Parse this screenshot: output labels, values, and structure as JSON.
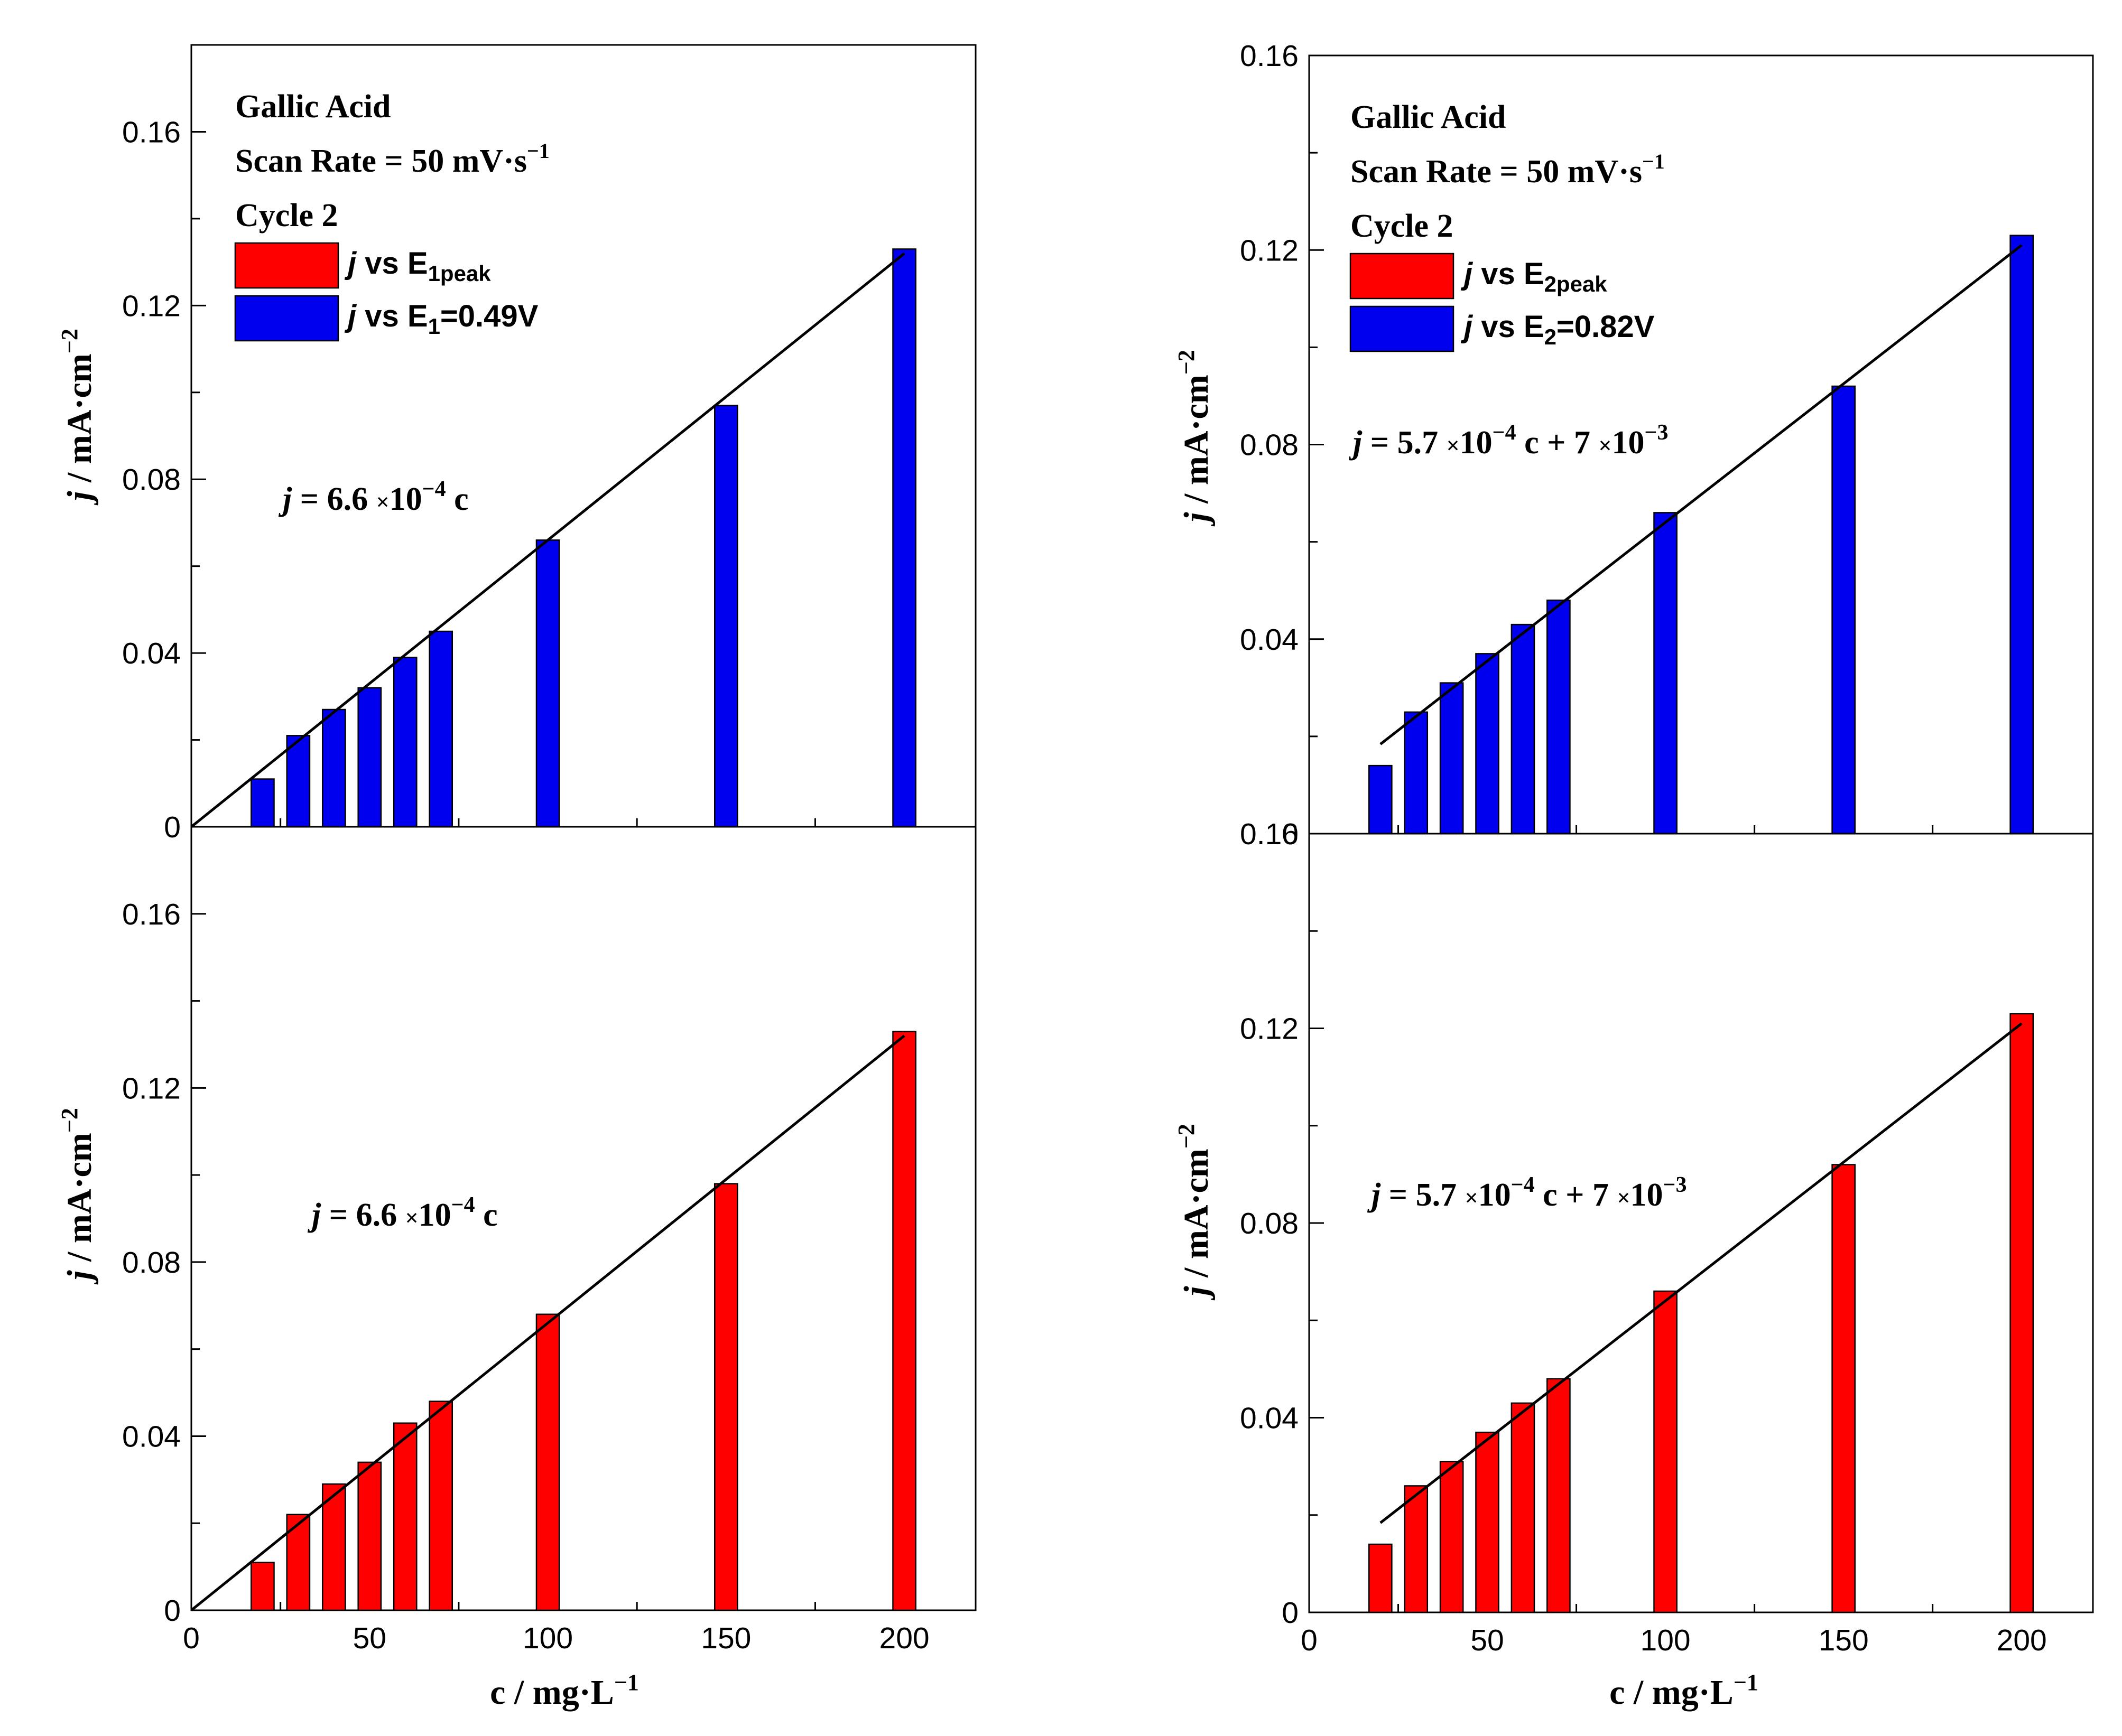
{
  "colors": {
    "blue": "#0000ee",
    "red": "#ff0000",
    "axis": "#000000"
  },
  "header": {
    "title": "Gallic Acid",
    "scan_rate_prefix": "Scan Rate = 50 mV·s",
    "scan_rate_exp": "−1",
    "cycle": "Cycle 2"
  },
  "axes": {
    "ylabel_j": "j",
    "ylabel_rest": " / mA·cm",
    "ylabel_exp": "−2",
    "xlabel_prefix": "c / mg·L",
    "xlabel_exp": "−1"
  },
  "legends": {
    "left": {
      "red": {
        "j": "j",
        "vs": " vs E",
        "sub": "1peak",
        "tail": ""
      },
      "blue": {
        "j": "j",
        "vs": " vs E",
        "sub": "1",
        "tail": "=0.49V"
      }
    },
    "right": {
      "red": {
        "j": "j",
        "vs": " vs E",
        "sub": "2peak",
        "tail": ""
      },
      "blue": {
        "j": "j",
        "vs": " vs E",
        "sub": "2",
        "tail": "=0.82V"
      }
    }
  },
  "equations": {
    "left": {
      "j": "j",
      "a": " = 6.6 ",
      "times": "×",
      "b": "10",
      "exp": "−4",
      "c": " c",
      "d": "",
      "exp2": ""
    },
    "right": {
      "j": "j",
      "a": " = 5.7 ",
      "times": "×",
      "b": "10",
      "exp": "−4",
      "c": " c + 7 ",
      "d": "10",
      "exp2": "−3"
    }
  },
  "chart_data": [
    {
      "type": "bar",
      "panel": "top-left",
      "series": [
        {
          "name": "j vs E1=0.49V",
          "color": "blue",
          "x": [
            20,
            30,
            40,
            50,
            60,
            70,
            100,
            150,
            200
          ],
          "values": [
            0.011,
            0.021,
            0.027,
            0.032,
            0.039,
            0.045,
            0.066,
            0.097,
            0.133
          ]
        }
      ],
      "fit": {
        "slope": 0.00066,
        "intercept": 0,
        "x_range": [
          0,
          200
        ]
      },
      "xlim": [
        0,
        220
      ],
      "ylim": [
        0,
        0.18
      ],
      "xticks": [
        "0",
        "50",
        "100",
        "150",
        "200"
      ],
      "yticks": [
        "0",
        "0.04",
        "0.08",
        "0.12",
        "0.16"
      ]
    },
    {
      "type": "bar",
      "panel": "bottom-left",
      "series": [
        {
          "name": "j vs E1peak",
          "color": "red",
          "x": [
            20,
            30,
            40,
            50,
            60,
            70,
            100,
            150,
            200
          ],
          "values": [
            0.011,
            0.022,
            0.029,
            0.034,
            0.043,
            0.048,
            0.068,
            0.098,
            0.133
          ]
        }
      ],
      "fit": {
        "slope": 0.00066,
        "intercept": 0,
        "x_range": [
          0,
          200
        ]
      },
      "xlim": [
        0,
        220
      ],
      "ylim": [
        0,
        0.18
      ],
      "xticks": [
        "0",
        "50",
        "100",
        "150",
        "200"
      ],
      "yticks": [
        "0",
        "0.04",
        "0.08",
        "0.12",
        "0.16"
      ]
    },
    {
      "type": "bar",
      "panel": "top-right",
      "series": [
        {
          "name": "j vs E2=0.82V",
          "color": "blue",
          "x": [
            20,
            30,
            40,
            50,
            60,
            70,
            100,
            150,
            200
          ],
          "values": [
            0.014,
            0.025,
            0.031,
            0.037,
            0.043,
            0.048,
            0.066,
            0.092,
            0.123
          ]
        }
      ],
      "fit": {
        "slope": 0.00057,
        "intercept": 0.007,
        "x_range": [
          20,
          200
        ]
      },
      "xlim": [
        0,
        220
      ],
      "ylim": [
        0,
        0.16
      ],
      "xticks": [
        "0",
        "50",
        "100",
        "150",
        "200"
      ],
      "yticks": [
        "0",
        "0.04",
        "0.08",
        "0.12",
        "0.16"
      ]
    },
    {
      "type": "bar",
      "panel": "bottom-right",
      "series": [
        {
          "name": "j vs E2peak",
          "color": "red",
          "x": [
            20,
            30,
            40,
            50,
            60,
            70,
            100,
            150,
            200
          ],
          "values": [
            0.014,
            0.026,
            0.031,
            0.037,
            0.043,
            0.048,
            0.066,
            0.092,
            0.123
          ]
        }
      ],
      "fit": {
        "slope": 0.00057,
        "intercept": 0.007,
        "x_range": [
          20,
          200
        ]
      },
      "xlim": [
        0,
        220
      ],
      "ylim": [
        0,
        0.16
      ],
      "xticks": [
        "0",
        "50",
        "100",
        "150",
        "200"
      ],
      "yticks": [
        "0",
        "0.04",
        "0.08",
        "0.12",
        "0.16"
      ]
    }
  ]
}
